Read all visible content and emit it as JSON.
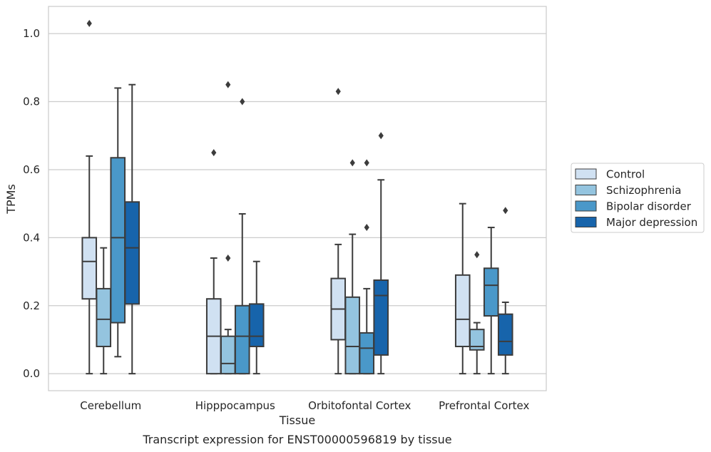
{
  "caption": "Transcript expression for ENST00000596819 by tissue",
  "chart_data": {
    "type": "box",
    "title": "",
    "xlabel": "Tissue",
    "ylabel": "TPMs",
    "ylim": [
      -0.05,
      1.08
    ],
    "yticks": [
      0.0,
      0.2,
      0.4,
      0.6,
      0.8,
      1.0
    ],
    "ytick_labels": [
      "0.0",
      "0.2",
      "0.4",
      "0.6",
      "0.8",
      "1.0"
    ],
    "grid": "horizontal",
    "legend_position": "right",
    "categories": [
      "Cerebellum",
      "Hipppocampus",
      "Orbitofontal Cortex",
      "Prefrontal Cortex"
    ],
    "series": [
      {
        "name": "Control",
        "color": "#d0e1f2",
        "boxes": [
          {
            "whislo": 0.0,
            "q1": 0.22,
            "med": 0.33,
            "q3": 0.4,
            "whishi": 0.64,
            "fliers": [
              1.03
            ]
          },
          {
            "whislo": 0.0,
            "q1": 0.0,
            "med": 0.11,
            "q3": 0.22,
            "whishi": 0.34,
            "fliers": [
              0.65
            ]
          },
          {
            "whislo": 0.0,
            "q1": 0.1,
            "med": 0.19,
            "q3": 0.28,
            "whishi": 0.38,
            "fliers": [
              0.83
            ]
          },
          {
            "whislo": 0.0,
            "q1": 0.08,
            "med": 0.16,
            "q3": 0.29,
            "whishi": 0.5,
            "fliers": []
          }
        ]
      },
      {
        "name": "Schizophrenia",
        "color": "#94c4df",
        "boxes": [
          {
            "whislo": 0.0,
            "q1": 0.08,
            "med": 0.16,
            "q3": 0.25,
            "whishi": 0.37,
            "fliers": []
          },
          {
            "whislo": 0.0,
            "q1": 0.0,
            "med": 0.03,
            "q3": 0.11,
            "whishi": 0.13,
            "fliers": [
              0.34,
              0.85
            ]
          },
          {
            "whislo": 0.0,
            "q1": 0.0,
            "med": 0.08,
            "q3": 0.225,
            "whishi": 0.41,
            "fliers": [
              0.62
            ]
          },
          {
            "whislo": 0.0,
            "q1": 0.07,
            "med": 0.08,
            "q3": 0.13,
            "whishi": 0.15,
            "fliers": [
              0.35
            ]
          }
        ]
      },
      {
        "name": "Bipolar disorder",
        "color": "#4a98c9",
        "boxes": [
          {
            "whislo": 0.05,
            "q1": 0.15,
            "med": 0.4,
            "q3": 0.635,
            "whishi": 0.84,
            "fliers": []
          },
          {
            "whislo": 0.0,
            "q1": 0.0,
            "med": 0.11,
            "q3": 0.2,
            "whishi": 0.47,
            "fliers": [
              0.8
            ]
          },
          {
            "whislo": 0.0,
            "q1": 0.0,
            "med": 0.075,
            "q3": 0.12,
            "whishi": 0.25,
            "fliers": [
              0.43,
              0.62
            ]
          },
          {
            "whislo": 0.0,
            "q1": 0.17,
            "med": 0.26,
            "q3": 0.31,
            "whishi": 0.43,
            "fliers": []
          }
        ]
      },
      {
        "name": "Major depression",
        "color": "#1764ab",
        "boxes": [
          {
            "whislo": 0.0,
            "q1": 0.205,
            "med": 0.37,
            "q3": 0.505,
            "whishi": 0.85,
            "fliers": []
          },
          {
            "whislo": 0.0,
            "q1": 0.08,
            "med": 0.11,
            "q3": 0.205,
            "whishi": 0.33,
            "fliers": []
          },
          {
            "whislo": 0.0,
            "q1": 0.055,
            "med": 0.23,
            "q3": 0.275,
            "whishi": 0.57,
            "fliers": [
              0.7
            ]
          },
          {
            "whislo": 0.0,
            "q1": 0.055,
            "med": 0.095,
            "q3": 0.175,
            "whishi": 0.21,
            "fliers": [
              0.48
            ]
          }
        ]
      }
    ]
  }
}
